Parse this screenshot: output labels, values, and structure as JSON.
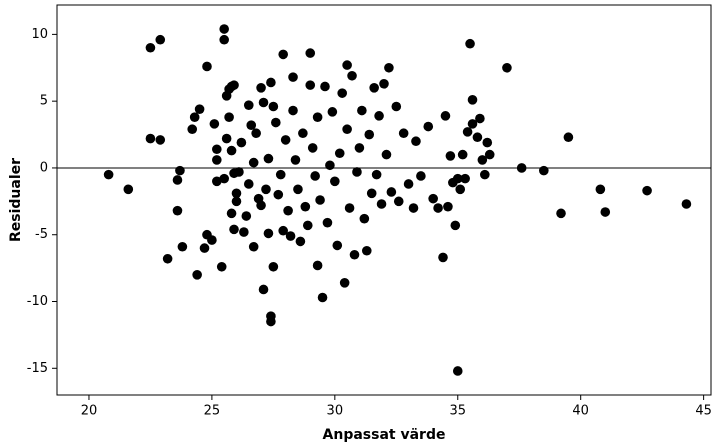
{
  "chart_data": {
    "type": "scatter",
    "x_label": "Anpassat värde",
    "y_label": "Residualer",
    "color": "#000000",
    "reference_line": 0,
    "xlim": [
      18.7,
      45.3
    ],
    "ylim": [
      -17,
      12.2
    ],
    "xticks": [
      20,
      25,
      30,
      35,
      40,
      45
    ],
    "yticks": [
      10,
      5,
      0,
      -5,
      -10,
      -15
    ],
    "x": [
      20.8,
      21.6,
      22.5,
      22.9,
      22.5,
      22.9,
      23.2,
      23.6,
      23.6,
      23.7,
      23.8,
      24.2,
      24.3,
      24.4,
      24.5,
      24.7,
      24.8,
      24.8,
      25.0,
      25.1,
      25.2,
      25.2,
      25.2,
      25.4,
      25.5,
      25.5,
      25.6,
      25.7,
      25.8,
      25.9,
      25.5,
      25.6,
      25.7,
      25.8,
      25.9,
      26.0,
      25.8,
      25.9,
      26.0,
      26.1,
      26.2,
      26.3,
      26.4,
      26.5,
      26.6,
      26.7,
      26.5,
      26.7,
      26.8,
      26.9,
      27.0,
      27.0,
      27.1,
      27.1,
      27.2,
      27.3,
      27.3,
      27.4,
      27.4,
      27.4,
      27.5,
      27.5,
      27.6,
      27.7,
      27.8,
      27.9,
      27.9,
      28.0,
      28.1,
      28.2,
      28.3,
      28.3,
      28.4,
      28.5,
      28.6,
      28.7,
      28.8,
      28.9,
      29.0,
      29.0,
      29.1,
      29.2,
      29.3,
      29.3,
      29.4,
      29.5,
      29.6,
      29.7,
      29.8,
      29.9,
      30.0,
      30.1,
      30.2,
      30.3,
      30.4,
      30.5,
      30.5,
      30.6,
      30.7,
      30.8,
      30.9,
      31.0,
      31.1,
      31.2,
      31.3,
      31.4,
      31.5,
      31.6,
      31.7,
      31.8,
      31.9,
      32.0,
      32.1,
      32.2,
      32.3,
      32.5,
      32.6,
      32.8,
      33.0,
      33.2,
      33.3,
      33.5,
      33.8,
      34.0,
      34.2,
      34.4,
      34.5,
      34.6,
      34.7,
      34.8,
      34.9,
      35.0,
      35.0,
      35.1,
      35.2,
      35.3,
      35.4,
      35.5,
      35.6,
      35.6,
      35.8,
      35.9,
      36.0,
      36.1,
      36.2,
      36.3,
      37.0,
      37.6,
      38.5,
      39.2,
      39.5,
      40.8,
      41.0,
      42.7,
      44.3
    ],
    "values": [
      -0.5,
      -1.6,
      9.0,
      9.6,
      2.2,
      2.1,
      -6.8,
      -3.2,
      -0.9,
      -0.2,
      -5.9,
      2.9,
      3.8,
      -8.0,
      4.4,
      -6.0,
      7.6,
      -5.0,
      -5.4,
      3.3,
      1.4,
      0.6,
      -1.0,
      -7.4,
      10.4,
      9.6,
      5.4,
      5.9,
      6.1,
      6.2,
      -0.8,
      2.2,
      3.8,
      1.3,
      -0.4,
      -1.9,
      -3.4,
      -4.6,
      -2.5,
      -0.3,
      1.9,
      -4.8,
      -3.6,
      4.7,
      3.2,
      0.4,
      -1.2,
      -5.9,
      2.6,
      -2.3,
      -2.8,
      6.0,
      4.9,
      -9.1,
      -1.6,
      0.7,
      -4.9,
      -11.1,
      -11.5,
      6.4,
      4.6,
      -7.4,
      3.4,
      -2.0,
      -0.5,
      8.5,
      -4.7,
      2.1,
      -3.2,
      -5.1,
      6.8,
      4.3,
      0.6,
      -1.6,
      -5.5,
      2.6,
      -2.9,
      -4.3,
      8.6,
      6.2,
      1.5,
      -0.6,
      -7.3,
      3.8,
      -2.4,
      -9.7,
      6.1,
      -4.1,
      0.2,
      4.2,
      -1.0,
      -5.8,
      1.1,
      5.6,
      -8.6,
      7.7,
      2.9,
      -3.0,
      6.9,
      -6.5,
      -0.3,
      1.5,
      4.3,
      -3.8,
      -6.2,
      2.5,
      -1.9,
      6.0,
      -0.5,
      3.9,
      -2.7,
      6.3,
      1.0,
      7.5,
      -1.8,
      4.6,
      -2.5,
      2.6,
      -1.2,
      -3.0,
      2.0,
      -0.6,
      3.1,
      -2.3,
      -3.0,
      -6.7,
      3.9,
      -2.9,
      0.9,
      -1.1,
      -4.3,
      -15.2,
      -0.8,
      -1.6,
      1.0,
      -0.8,
      2.7,
      9.3,
      5.1,
      3.3,
      2.3,
      3.7,
      0.6,
      -0.5,
      1.9,
      1.0,
      7.5,
      0.0,
      -0.2,
      -3.4,
      2.3,
      -1.6,
      -3.3,
      -1.7,
      -2.7
    ]
  }
}
